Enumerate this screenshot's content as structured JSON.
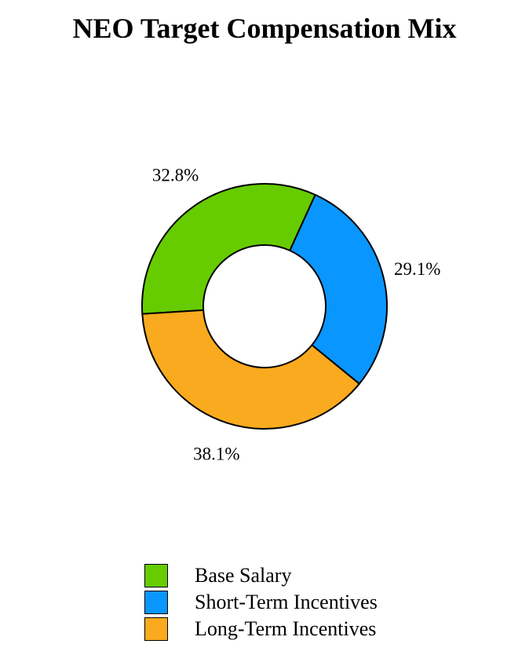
{
  "chart_data": {
    "type": "pie",
    "style": "donut",
    "title": "NEO Target Compensation Mix",
    "series": [
      {
        "name": "Base Salary",
        "value": 32.8,
        "label": "32.8%",
        "color": "#66cc00"
      },
      {
        "name": "Short-Term Incentives",
        "value": 29.1,
        "label": "29.1%",
        "color": "#0a96ff"
      },
      {
        "name": "Long-Term Incentives",
        "value": 38.1,
        "label": "38.1%",
        "color": "#faaa1e"
      }
    ],
    "legend": "bottom"
  }
}
